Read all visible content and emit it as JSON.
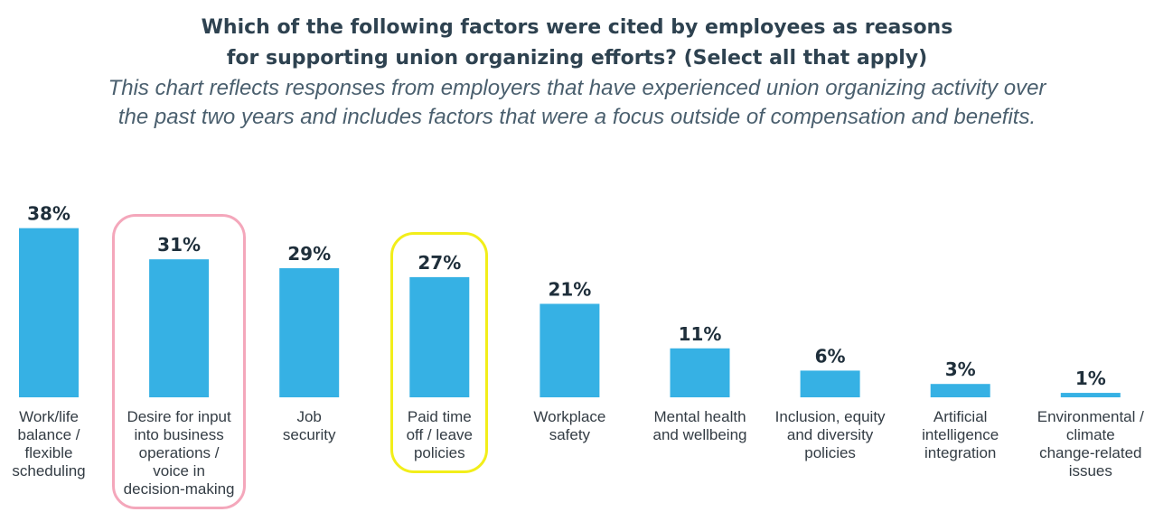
{
  "chart_data": {
    "type": "bar",
    "title_lines": [
      "Which of the following factors were cited by employees as reasons",
      "for supporting union organizing efforts? (Select all that apply)"
    ],
    "subtitle_lines": [
      "This chart reflects responses from employers that have experienced union organizing activity over",
      "the past two years and includes factors that were a focus outside of compensation and benefits."
    ],
    "categories": [
      [
        "Work/life",
        "balance /",
        "flexible",
        "scheduling"
      ],
      [
        "Desire for input",
        "into business",
        "operations /",
        "voice in",
        "decision-making"
      ],
      [
        "Job",
        "security"
      ],
      [
        "Paid time",
        "off / leave",
        "policies"
      ],
      [
        "Workplace",
        "safety"
      ],
      [
        "Mental health",
        "and wellbeing"
      ],
      [
        "Inclusion, equity",
        "and diversity",
        "policies"
      ],
      [
        "Artificial",
        "intelligence",
        "integration"
      ],
      [
        "Environmental /",
        "climate",
        "change-related",
        "issues"
      ]
    ],
    "values": [
      38,
      31,
      29,
      27,
      21,
      11,
      6,
      3,
      1
    ],
    "data_labels": [
      "38%",
      "31%",
      "29%",
      "27%",
      "21%",
      "11%",
      "6%",
      "3%",
      "1%"
    ],
    "unit": "%",
    "ylim": [
      0,
      40
    ],
    "grid": false,
    "highlights": [
      {
        "category_index": 1,
        "color": "#f4a7bb"
      },
      {
        "category_index": 3,
        "color": "#f2ee1a"
      }
    ],
    "colors": {
      "bar": "#36b1e4",
      "label": "#1f2f3b"
    }
  }
}
